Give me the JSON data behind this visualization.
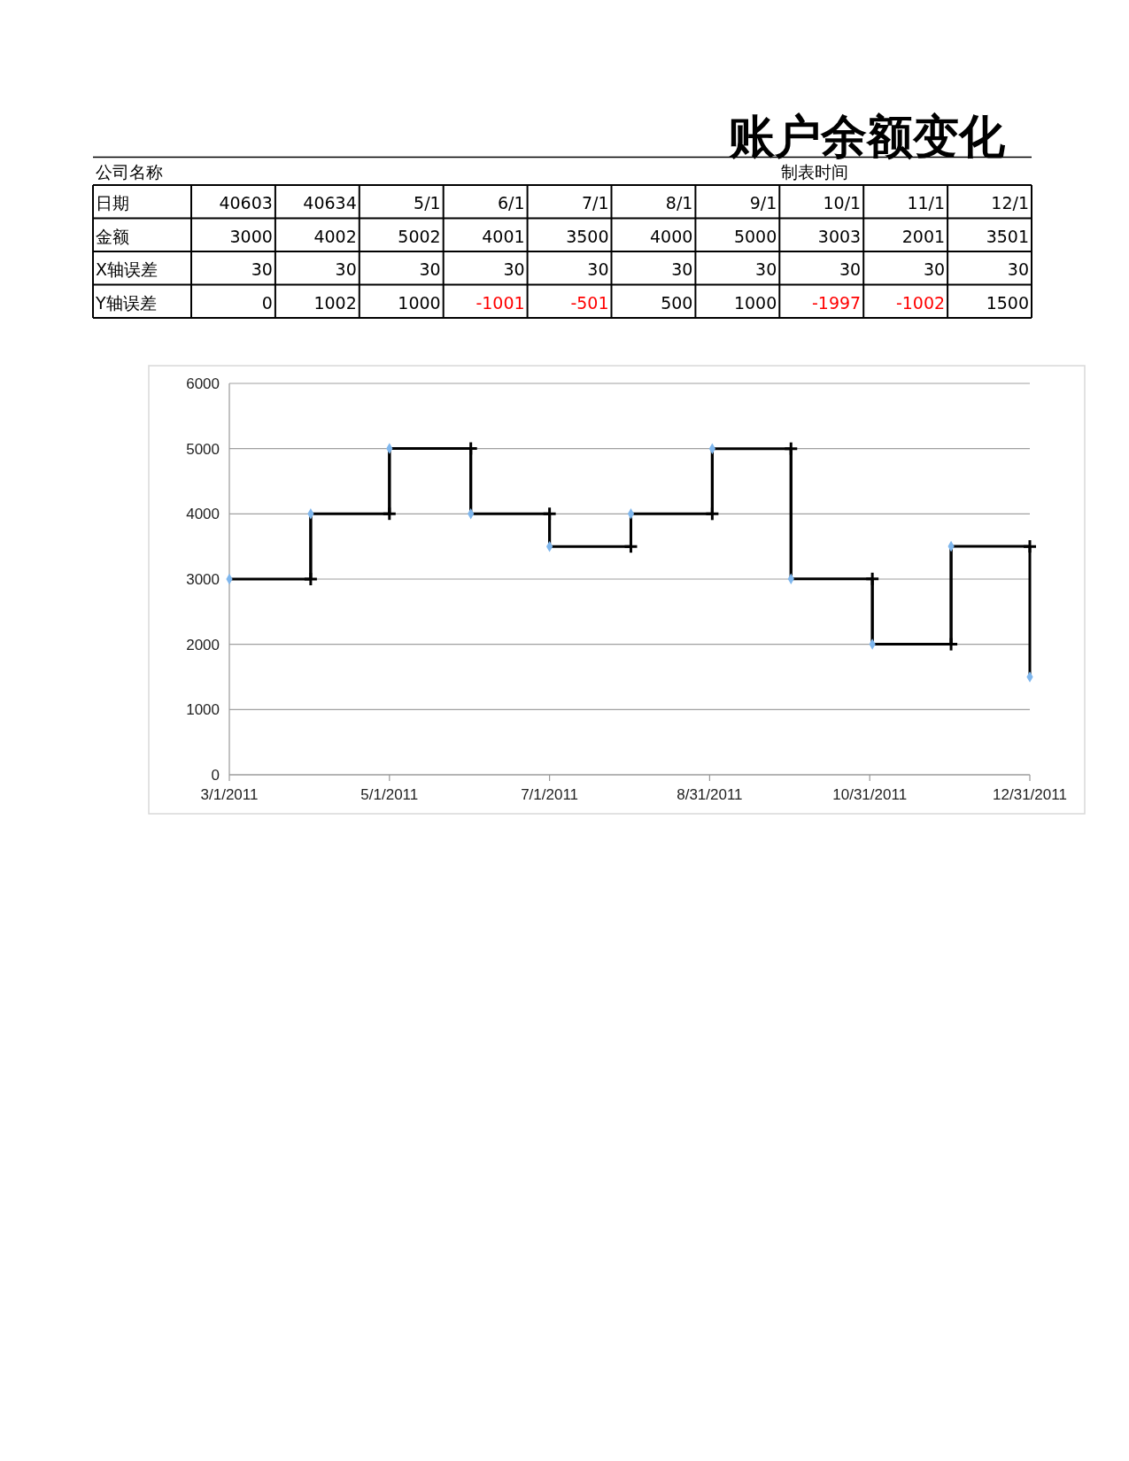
{
  "chart_data": [
    {
      "type": "other",
      "title": "账户余额变化",
      "annotations": [
        "公司名称",
        "制表时间"
      ],
      "xlabel": "日期",
      "categories": [
        "40603",
        "40634",
        "5/1",
        "6/1",
        "7/1",
        "8/1",
        "9/1",
        "10/1",
        "11/1",
        "12/1"
      ],
      "data_labels": true,
      "series": [
        {
          "name": "金额",
          "color": "#000000",
          "values": [
            3000,
            4002,
            5002,
            4001,
            3500,
            4000,
            5000,
            3003,
            2001,
            3501
          ]
        },
        {
          "name": "X轴误差",
          "color": "#000000",
          "values": [
            30,
            30,
            30,
            30,
            30,
            30,
            30,
            30,
            30,
            30
          ]
        },
        {
          "name": "Y轴误差",
          "colors": [
            "#000000",
            "#000000",
            "#000000",
            "#ff0000",
            "#ff0000",
            "#000000",
            "#000000",
            "#ff0000",
            "#ff0000",
            "#000000"
          ],
          "values": [
            0,
            1002,
            1000,
            -1001,
            -501,
            500,
            1000,
            -1997,
            -1002,
            1500
          ]
        }
      ]
    },
    {
      "type": "scatter",
      "series": [
        {
          "type": "step",
          "color": "#000000",
          "x": [
            "2011-03-01",
            "2011-04-01",
            "2011-05-01",
            "2011-06-01",
            "2011-07-01",
            "2011-08-01",
            "2011-09-01",
            "2011-10-01",
            "2011-11-01",
            "2011-12-01",
            "2011-12-31"
          ],
          "values": [
            3000,
            4002,
            5002,
            4001,
            3500,
            4000,
            5000,
            3003,
            2001,
            3501,
            3501
          ]
        },
        {
          "type": "scatter",
          "color": "#7fb7ee",
          "marker": "diamond",
          "x": [
            "2011-03-01",
            "2011-04-01",
            "2011-05-01",
            "2011-06-01",
            "2011-07-01",
            "2011-08-01",
            "2011-09-01",
            "2011-10-01",
            "2011-11-01",
            "2011-12-01",
            "2011-12-31"
          ],
          "values": [
            3000,
            4002,
            5002,
            4001,
            3500,
            4000,
            5000,
            3003,
            2001,
            3501,
            1500
          ],
          "errors": [
            null,
            [
              3000,
              4002
            ],
            [
              4002,
              5002
            ],
            [
              4001,
              5002
            ],
            [
              3500,
              4001
            ],
            [
              3500,
              4000
            ],
            [
              4000,
              5000
            ],
            [
              3003,
              5000
            ],
            [
              2001,
              3003
            ],
            [
              2001,
              3501
            ],
            [
              1500,
              3500
            ]
          ]
        }
      ],
      "xlim": [
        "2011-03-01",
        "2011-12-31"
      ],
      "xticks": [
        {
          "value": "2011-03-01",
          "label": "3/1/2011"
        },
        {
          "value": "2011-05-01",
          "label": "5/1/2011"
        },
        {
          "value": "2011-07-01",
          "label": "7/1/2011"
        },
        {
          "value": "2011-08-31",
          "label": "8/31/2011"
        },
        {
          "value": "2011-10-31",
          "label": "10/31/2011"
        },
        {
          "value": "2011-12-31",
          "label": "12/31/2011"
        }
      ],
      "ylim": [
        0,
        6000
      ],
      "yticks": [
        0,
        1000,
        2000,
        3000,
        4000,
        5000,
        6000
      ],
      "grid": "y"
    }
  ]
}
